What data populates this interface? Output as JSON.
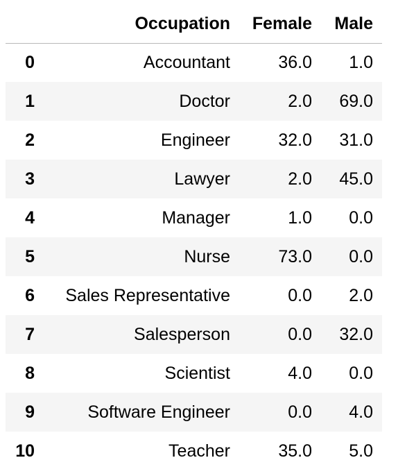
{
  "table": {
    "index_header": "",
    "columns": [
      "Occupation",
      "Female",
      "Male"
    ],
    "rows": [
      {
        "index": "0",
        "occupation": "Accountant",
        "female": "36.0",
        "male": "1.0"
      },
      {
        "index": "1",
        "occupation": "Doctor",
        "female": "2.0",
        "male": "69.0"
      },
      {
        "index": "2",
        "occupation": "Engineer",
        "female": "32.0",
        "male": "31.0"
      },
      {
        "index": "3",
        "occupation": "Lawyer",
        "female": "2.0",
        "male": "45.0"
      },
      {
        "index": "4",
        "occupation": "Manager",
        "female": "1.0",
        "male": "0.0"
      },
      {
        "index": "5",
        "occupation": "Nurse",
        "female": "73.0",
        "male": "0.0"
      },
      {
        "index": "6",
        "occupation": "Sales Representative",
        "female": "0.0",
        "male": "2.0"
      },
      {
        "index": "7",
        "occupation": "Salesperson",
        "female": "0.0",
        "male": "32.0"
      },
      {
        "index": "8",
        "occupation": "Scientist",
        "female": "4.0",
        "male": "0.0"
      },
      {
        "index": "9",
        "occupation": "Software Engineer",
        "female": "0.0",
        "male": "4.0"
      },
      {
        "index": "10",
        "occupation": "Teacher",
        "female": "35.0",
        "male": "5.0"
      }
    ]
  },
  "colors": {
    "stripe": "#f5f5f5",
    "header_rule": "#b8b8b8",
    "text": "#000000"
  }
}
